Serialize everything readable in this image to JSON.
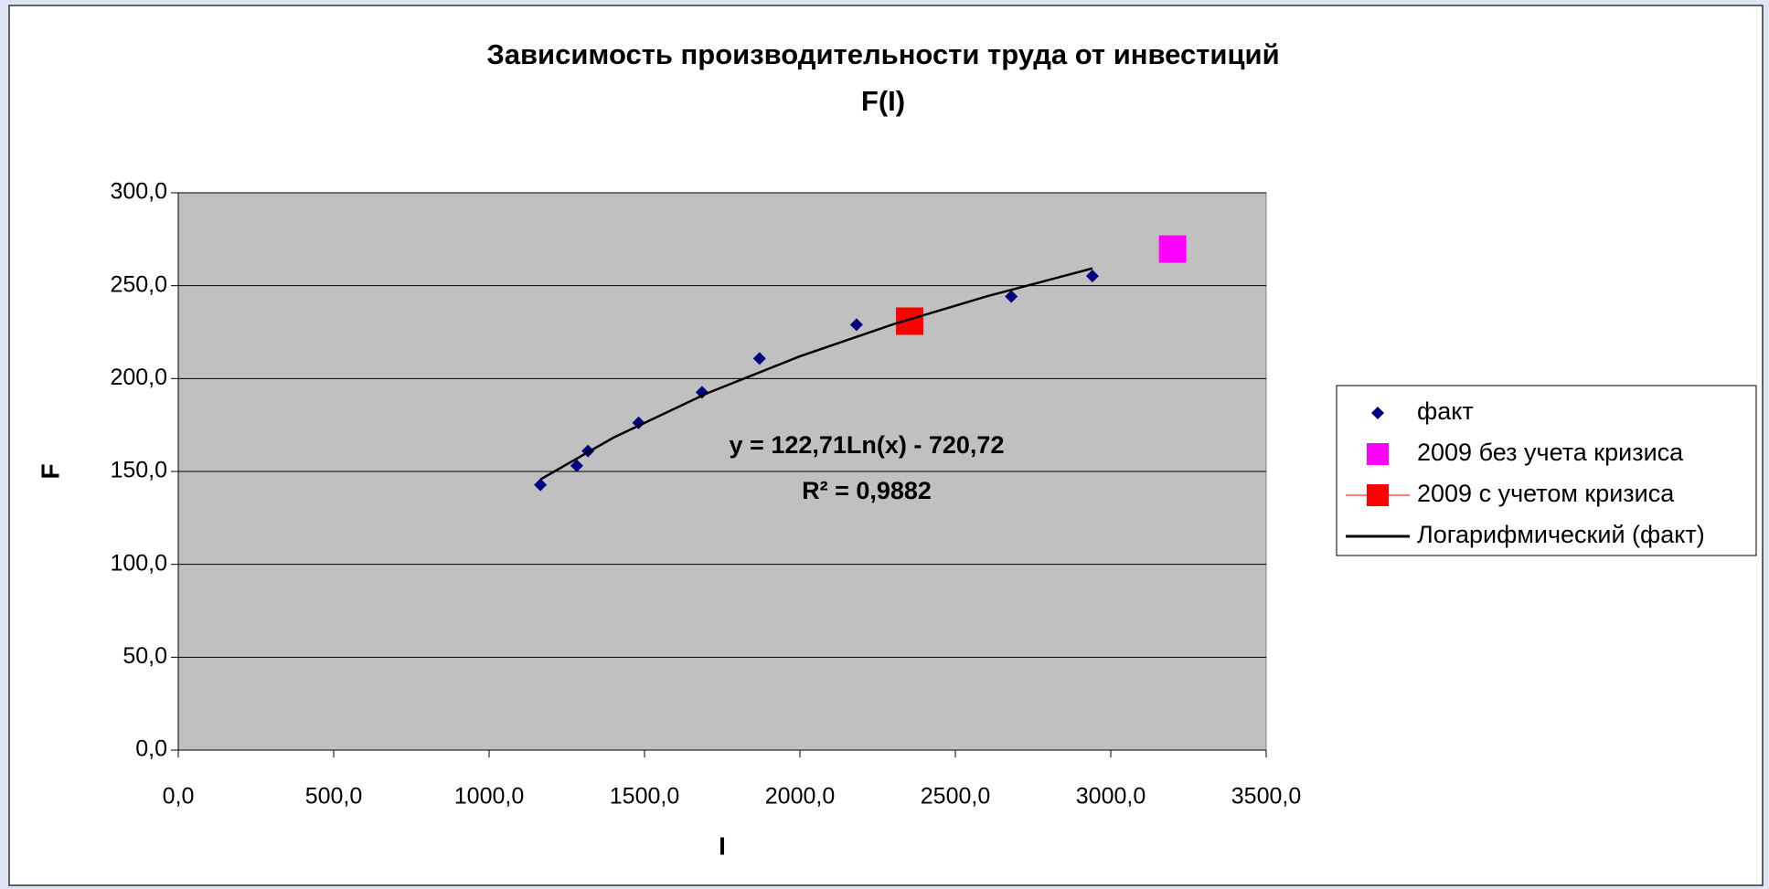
{
  "chart_data": {
    "type": "scatter",
    "title": "Зависимость производительности труда от инвестиций",
    "subtitle": "F(I)",
    "x_label": "I",
    "y_label": "F",
    "annotations": [
      "y = 122,71Ln(x) - 720,72",
      "R² = 0,9882"
    ],
    "xlim": [
      0,
      3500
    ],
    "xticks": [
      {
        "value": 0,
        "label": "0,0"
      },
      {
        "value": 500,
        "label": "500,0"
      },
      {
        "value": 1000,
        "label": "1000,0"
      },
      {
        "value": 1500,
        "label": "1500,0"
      },
      {
        "value": 2000,
        "label": "2000,0"
      },
      {
        "value": 2500,
        "label": "2500,0"
      },
      {
        "value": 3000,
        "label": "3000,0"
      },
      {
        "value": 3500,
        "label": "3500,0"
      }
    ],
    "ylim": [
      0,
      300
    ],
    "yticks": [
      {
        "value": 0,
        "label": "0,0"
      },
      {
        "value": 50,
        "label": "50,0"
      },
      {
        "value": 100,
        "label": "100,0"
      },
      {
        "value": 150,
        "label": "150,0"
      },
      {
        "value": 200,
        "label": "200,0"
      },
      {
        "value": 250,
        "label": "250,0"
      },
      {
        "value": 300,
        "label": "300,0"
      }
    ],
    "grid": true,
    "legend": "right",
    "series": [
      {
        "name": "факт",
        "color": "#000080",
        "marker": "diamond",
        "x": [
          1165,
          1282,
          1318,
          1481,
          1685,
          1870,
          2182,
          2680,
          2941
        ],
        "values": [
          142.8,
          153.1,
          161,
          176.2,
          192.6,
          210.8,
          229,
          244.2,
          255.2
        ]
      },
      {
        "name": "2009 без учета кризиса",
        "color": "#ff00ff",
        "marker": "square",
        "x": [
          3199
        ],
        "values": [
          269.7
        ]
      },
      {
        "name": "2009 с учетом кризиса",
        "color": "#ff0000",
        "marker": "square",
        "x": [
          2353
        ],
        "values": [
          230.9
        ]
      },
      {
        "name": "Логарифмический (факт)",
        "color": "#000000",
        "marker": "line",
        "x": [
          1165,
          1400,
          1700,
          2000,
          2300,
          2600,
          2941
        ],
        "values": [
          145.7,
          168.2,
          192.0,
          212.0,
          229.2,
          244.2,
          259.3
        ]
      }
    ]
  }
}
